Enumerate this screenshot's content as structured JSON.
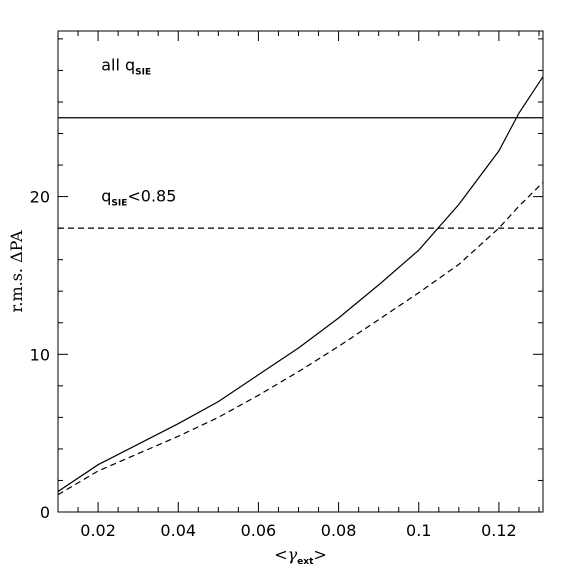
{
  "chart_data": {
    "type": "line",
    "xlabel": {
      "open": "<",
      "symbol": "γ",
      "sub": "ext",
      "close": ">"
    },
    "ylabel": "r.m.s. ΔPA",
    "xlim": [
      0.01,
      0.131
    ],
    "ylim": [
      0,
      30.5
    ],
    "x_ticks": [
      {
        "value": 0.02,
        "label": "0.02"
      },
      {
        "value": 0.04,
        "label": "0.04"
      },
      {
        "value": 0.06,
        "label": "0.06"
      },
      {
        "value": 0.08,
        "label": "0.08"
      },
      {
        "value": 0.1,
        "label": "0.1"
      },
      {
        "value": 0.12,
        "label": "0.12"
      }
    ],
    "y_ticks": [
      {
        "value": 0,
        "label": "0"
      },
      {
        "value": 10,
        "label": "10"
      },
      {
        "value": 20,
        "label": "20"
      }
    ],
    "x_minor_step": 0.005,
    "y_minor_step": 2,
    "grid": false,
    "series": [
      {
        "style": "solid",
        "x": [
          0.01,
          0.02,
          0.03,
          0.04,
          0.05,
          0.06,
          0.07,
          0.08,
          0.09,
          0.1,
          0.11,
          0.12,
          0.125,
          0.131
        ],
        "y": [
          1.3,
          3.0,
          4.3,
          5.6,
          7.0,
          8.7,
          10.4,
          12.3,
          14.4,
          16.6,
          19.5,
          22.9,
          25.3,
          27.6
        ]
      },
      {
        "style": "dashed",
        "x": [
          0.01,
          0.02,
          0.03,
          0.04,
          0.05,
          0.06,
          0.07,
          0.08,
          0.09,
          0.1,
          0.11,
          0.12,
          0.125,
          0.131
        ],
        "y": [
          1.1,
          2.6,
          3.7,
          4.8,
          6.0,
          7.4,
          8.9,
          10.5,
          12.2,
          13.9,
          15.7,
          18.0,
          19.4,
          20.9
        ]
      }
    ],
    "hlines": [
      {
        "style": "solid",
        "y": 25.0
      },
      {
        "style": "dashed",
        "y": 18.0
      }
    ],
    "annotations": [
      {
        "prefix": "all  q",
        "sub": "SIE",
        "suffix": "",
        "x": 0.0128,
        "y": 28.0
      },
      {
        "prefix": "q",
        "sub": "SIE",
        "suffix": "<0.85",
        "x": 0.0128,
        "y": 19.7
      }
    ]
  }
}
